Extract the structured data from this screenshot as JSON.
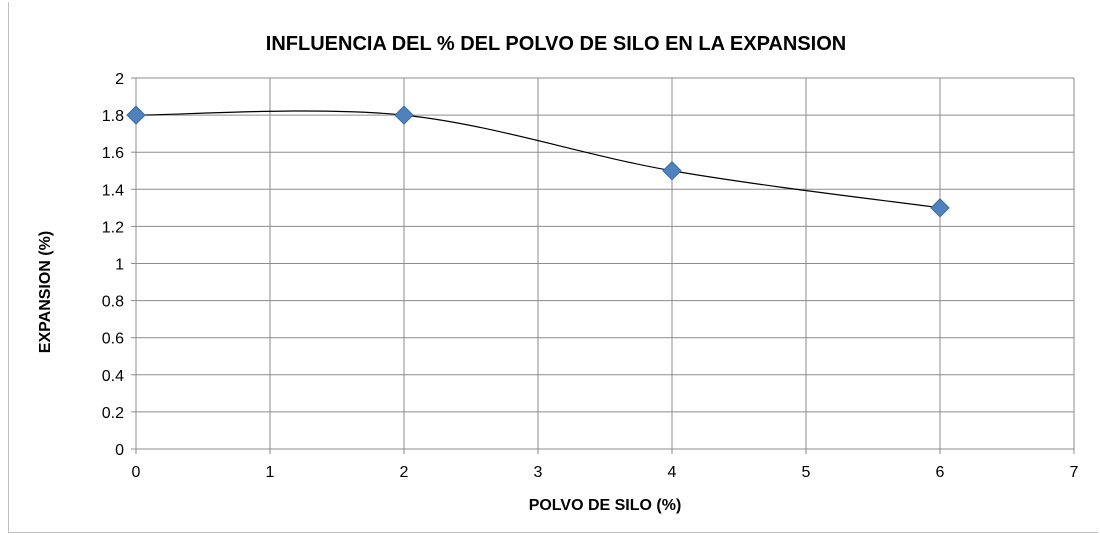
{
  "chart_data": {
    "type": "scatter",
    "title": "INFLUENCIA DEL % DEL POLVO DE SILO EN LA EXPANSION",
    "xlabel": "POLVO DE SILO (%)",
    "ylabel": "EXPANSION (%)",
    "xlim": [
      0,
      7
    ],
    "ylim": [
      0,
      2
    ],
    "x_ticks": [
      "0",
      "1",
      "2",
      "3",
      "4",
      "5",
      "6",
      "7"
    ],
    "y_ticks": [
      "0",
      "0.2",
      "0.4",
      "0.6",
      "0.8",
      "1",
      "1.2",
      "1.4",
      "1.6",
      "1.8",
      "2"
    ],
    "grid": true,
    "legend": "none",
    "trendline": "smooth",
    "marker": "diamond",
    "marker_color": "#4F81BD",
    "line_color": "#000000",
    "series": [
      {
        "x": [
          0,
          2,
          4,
          6
        ],
        "values": [
          1.8,
          1.8,
          1.5,
          1.3
        ]
      }
    ]
  }
}
